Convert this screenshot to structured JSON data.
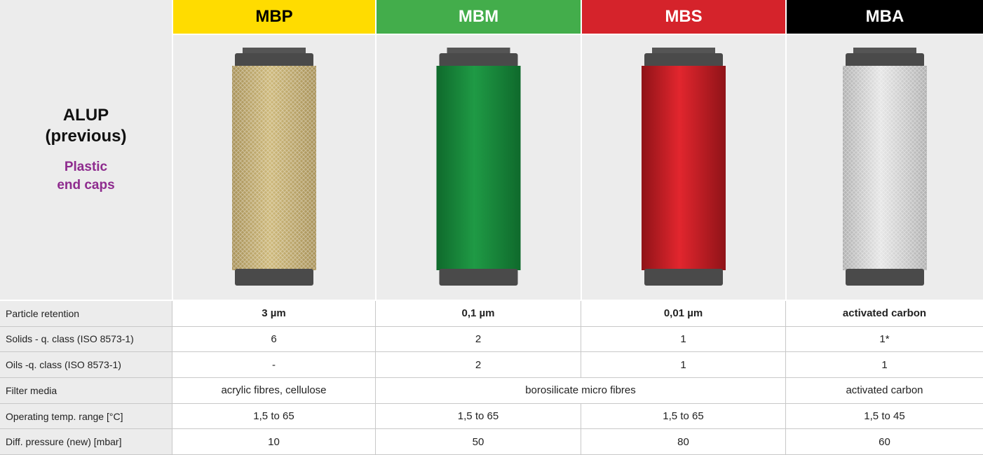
{
  "header": {
    "title": [
      "ALUP",
      "(previous)"
    ],
    "subtitle": [
      "Plastic",
      "end caps"
    ]
  },
  "columns": [
    {
      "name": "MBP",
      "color": "#ffdc00",
      "text_color": "#000000"
    },
    {
      "name": "MBM",
      "color": "#43ad4b",
      "text_color": "#ffffff"
    },
    {
      "name": "MBS",
      "color": "#d5232b",
      "text_color": "#ffffff"
    },
    {
      "name": "MBA",
      "color": "#000000",
      "text_color": "#ffffff"
    }
  ],
  "rows": [
    {
      "label": "Particle retention",
      "cells": [
        "3 µm",
        "0,1 µm",
        "0,01 µm",
        "activated carbon"
      ]
    },
    {
      "label": "Solids - q. class (ISO 8573-1)",
      "cells": [
        "6",
        "2",
        "1",
        "1*"
      ]
    },
    {
      "label": "Oils -q. class (ISO 8573-1)",
      "cells": [
        "-",
        "2",
        "1",
        "1"
      ]
    },
    {
      "label": "Filter media",
      "cells": [
        "acrylic fibres, cellulose",
        "borosilicate micro fibres",
        "activated carbon"
      ]
    },
    {
      "label": "Operating temp. range [°C]",
      "cells": [
        "1,5 to 65",
        "1,5 to 65",
        "1,5 to 65",
        "1,5 to 45"
      ]
    },
    {
      "label": "Diff. pressure (new) [mbar]",
      "cells": [
        "10",
        "50",
        "80",
        "60"
      ]
    }
  ]
}
